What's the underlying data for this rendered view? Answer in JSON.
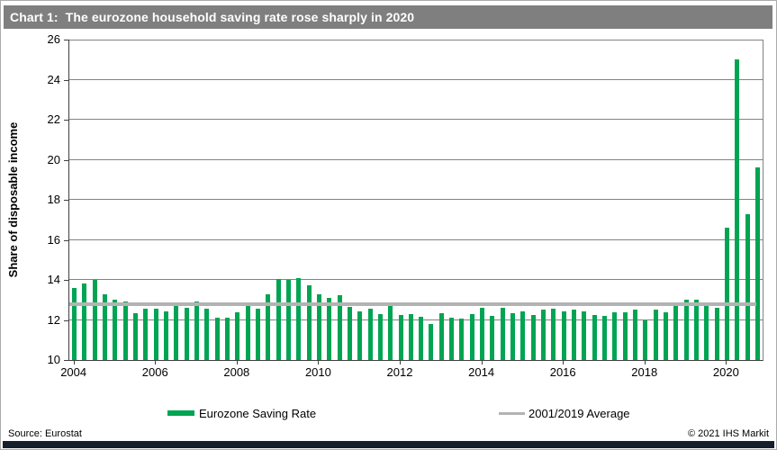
{
  "window": {
    "title": "Chart 1:  The eurozone household saving rate rose sharply in 2020"
  },
  "chart_data": {
    "type": "bar",
    "title": "The eurozone household saving rate rose sharply in 2020",
    "ylabel": "Share of disposable income",
    "xlabel": "",
    "ylim": [
      10,
      26
    ],
    "yticks": [
      10,
      12,
      14,
      16,
      18,
      20,
      22,
      24,
      26
    ],
    "xticks": [
      "2004",
      "2006",
      "2008",
      "2010",
      "2012",
      "2014",
      "2016",
      "2018",
      "2020"
    ],
    "grid": true,
    "legend_position": "bottom",
    "categories": [
      "2004Q1",
      "2004Q2",
      "2004Q3",
      "2004Q4",
      "2005Q1",
      "2005Q2",
      "2005Q3",
      "2005Q4",
      "2006Q1",
      "2006Q2",
      "2006Q3",
      "2006Q4",
      "2007Q1",
      "2007Q2",
      "2007Q3",
      "2007Q4",
      "2008Q1",
      "2008Q2",
      "2008Q3",
      "2008Q4",
      "2009Q1",
      "2009Q2",
      "2009Q3",
      "2009Q4",
      "2010Q1",
      "2010Q2",
      "2010Q3",
      "2010Q4",
      "2011Q1",
      "2011Q2",
      "2011Q3",
      "2011Q4",
      "2012Q1",
      "2012Q2",
      "2012Q3",
      "2012Q4",
      "2013Q1",
      "2013Q2",
      "2013Q3",
      "2013Q4",
      "2014Q1",
      "2014Q2",
      "2014Q3",
      "2014Q4",
      "2015Q1",
      "2015Q2",
      "2015Q3",
      "2015Q4",
      "2016Q1",
      "2016Q2",
      "2016Q3",
      "2016Q4",
      "2017Q1",
      "2017Q2",
      "2017Q3",
      "2017Q4",
      "2018Q1",
      "2018Q2",
      "2018Q3",
      "2018Q4",
      "2019Q1",
      "2019Q2",
      "2019Q3",
      "2019Q4",
      "2020Q1",
      "2020Q2",
      "2020Q3",
      "2020Q4"
    ],
    "series": [
      {
        "name": "Eurozone Saving Rate",
        "type": "bar",
        "color": "#00A452",
        "values": [
          13.6,
          13.8,
          14.0,
          13.3,
          13.0,
          12.9,
          12.35,
          12.55,
          12.55,
          12.45,
          12.7,
          12.6,
          12.9,
          12.55,
          12.1,
          12.1,
          12.4,
          12.75,
          12.55,
          13.3,
          14.05,
          14.0,
          14.1,
          13.75,
          13.3,
          13.1,
          13.25,
          12.65,
          12.45,
          12.55,
          12.3,
          12.85,
          12.25,
          12.3,
          12.15,
          11.8,
          12.35,
          12.1,
          12.05,
          12.3,
          12.6,
          12.2,
          12.6,
          12.35,
          12.45,
          12.25,
          12.5,
          12.55,
          12.45,
          12.5,
          12.45,
          12.25,
          12.2,
          12.4,
          12.4,
          12.5,
          12.0,
          12.5,
          12.4,
          12.75,
          13.0,
          13.0,
          12.7,
          12.6,
          16.6,
          25.0,
          17.3,
          19.6
        ]
      },
      {
        "name": "2001/2019 Average",
        "type": "hline",
        "color": "#B3B3B3",
        "value": 12.8
      }
    ]
  },
  "legend": {
    "items": [
      {
        "label": "Eurozone Saving Rate",
        "swatch": "bar",
        "color": "#00A452"
      },
      {
        "label": "2001/2019 Average",
        "swatch": "line",
        "color": "#B3B3B3"
      }
    ]
  },
  "footer": {
    "source": "Source: Eurostat",
    "copyright": "© 2021  IHS Markit"
  },
  "colors": {
    "bar": "#00A452",
    "average_line": "#B3B3B3",
    "title_bar_bg": "#7F7F7F",
    "bottom_bar_bg": "#16202C",
    "gridline": "#828282",
    "axis": "#3F3F3F"
  }
}
